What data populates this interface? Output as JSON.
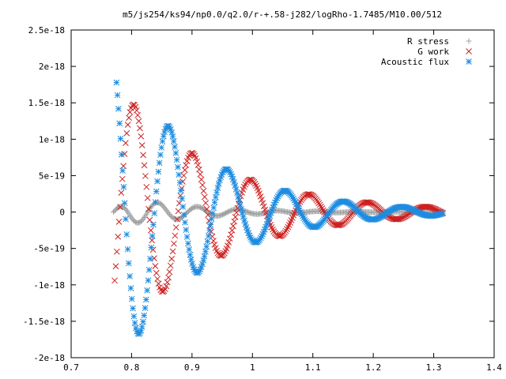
{
  "chart_data": {
    "type": "scatter",
    "title": "m5/js254/ks94/np0.0/q2.0/r-+.58-j282/logRho-1.7485/M10.00/512",
    "xlabel": "",
    "ylabel": "",
    "xlim": [
      0.7,
      1.4
    ],
    "ylim": [
      -2e-18,
      2.5e-18
    ],
    "x_ticks": [
      "0.7",
      "0.8",
      "0.9",
      "1",
      "1.1",
      "1.2",
      "1.3",
      "1.4"
    ],
    "y_ticks": [
      "-2e-18",
      "-1.5e-18",
      "-1e-18",
      "-5e-19",
      "0",
      "5e-19",
      "1e-18",
      "1.5e-18",
      "2e-18",
      "2.5e-18"
    ],
    "legend_position": "top-right",
    "grid": false,
    "series": [
      {
        "name": "R stress",
        "color": "#a0a0a0",
        "marker": "plus",
        "x_range": [
          0.77,
          1.315
        ],
        "n_points": 300,
        "generator": {
          "x0": 0.77,
          "amp": 3e-19,
          "decay": 10,
          "freq": 95,
          "phase": 0.9,
          "rise": 0.03,
          "offset": 0
        }
      },
      {
        "name": "G work",
        "color": "#cc2020",
        "marker": "x",
        "x_range": [
          0.772,
          1.315
        ],
        "n_points": 300,
        "generator": {
          "x0": 0.772,
          "amp": 1.8e-18,
          "decay": 6.2,
          "freq": 65,
          "phase": -0.55,
          "rise": 0,
          "offset": 0
        }
      },
      {
        "name": "Acoustic flux",
        "color": "#1e8ce0",
        "marker": "star",
        "x_range": [
          0.775,
          1.315
        ],
        "n_points": 320,
        "generator": {
          "x0": 0.775,
          "amp": 2.2e-18,
          "decay": 7.2,
          "freq": 65,
          "phase": 2.2,
          "rise": 0,
          "offset": 0
        }
      }
    ]
  }
}
